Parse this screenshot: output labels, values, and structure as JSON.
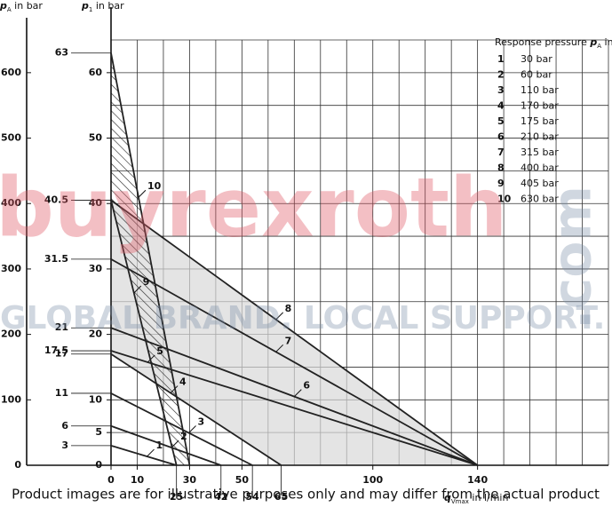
{
  "chart_data": {
    "type": "line",
    "y_label": {
      "symbol": "p",
      "sub": "1",
      "text": " in bar"
    },
    "y2_label": {
      "symbol": "p",
      "sub": "A",
      "text": " in bar"
    },
    "x_label": {
      "symbol": "q",
      "sub": "Vmax",
      "text": " in l/min"
    },
    "xlim": [
      0,
      190
    ],
    "ylim": [
      0,
      65
    ],
    "y2lim": [
      0,
      650
    ],
    "xticks": [
      0,
      10,
      30,
      50,
      100,
      140
    ],
    "yticks": [
      0,
      5,
      10,
      20,
      30,
      40,
      50,
      60
    ],
    "y2ticks": [
      0,
      100,
      200,
      300,
      400,
      500,
      600
    ],
    "xminorticks": [
      0,
      10,
      20,
      30,
      40,
      50,
      60,
      70,
      80,
      90,
      100,
      110,
      120,
      130,
      140,
      150,
      160,
      170,
      180,
      190
    ],
    "yminorticks": [
      0,
      5,
      10,
      15,
      20,
      25,
      30,
      35,
      40,
      45,
      50,
      55,
      60,
      65
    ],
    "intercept_marks": [
      63,
      40.5,
      31.5,
      21,
      17.5,
      17,
      11,
      6,
      3
    ],
    "end_marks": [
      25,
      42,
      54,
      65
    ],
    "grid": true,
    "color": "#222222",
    "legend_title": {
      "text": "Response pressure ",
      "symbol": "p",
      "sub": "A",
      "tail": " in bar"
    },
    "series": [
      {
        "name": "1",
        "legend": "30 bar",
        "x": [
          0,
          25
        ],
        "values": [
          3,
          0
        ]
      },
      {
        "name": "2",
        "legend": "60 bar",
        "x": [
          0,
          42
        ],
        "values": [
          6,
          0
        ]
      },
      {
        "name": "3",
        "legend": "110 bar",
        "x": [
          0,
          54
        ],
        "values": [
          11,
          0
        ]
      },
      {
        "name": "4",
        "legend": "170 bar",
        "x": [
          0,
          65
        ],
        "values": [
          17,
          0
        ]
      },
      {
        "name": "5",
        "legend": "175 bar",
        "x": [
          0,
          140
        ],
        "values": [
          17.5,
          0
        ]
      },
      {
        "name": "6",
        "legend": "210 bar",
        "x": [
          0,
          140
        ],
        "values": [
          21,
          0
        ]
      },
      {
        "name": "7",
        "legend": "315 bar",
        "x": [
          0,
          140
        ],
        "values": [
          31.5,
          0
        ]
      },
      {
        "name": "8",
        "legend": "400 bar",
        "x": [
          0,
          140
        ],
        "values": [
          40.5,
          0
        ]
      },
      {
        "name": "9",
        "legend": "405 bar",
        "x": [
          0,
          25
        ],
        "values": [
          40.5,
          0
        ]
      },
      {
        "name": "10",
        "legend": "630 bar",
        "x": [
          0,
          30
        ],
        "values": [
          63,
          0
        ]
      }
    ]
  },
  "watermark": {
    "brand": "buyrexroth",
    "domain": ".com",
    "slogan": "GLOBAL BRAND. LOCAL SUPPORT."
  },
  "footer": "Product images are for illustrative purposes only and may differ from the actual product"
}
